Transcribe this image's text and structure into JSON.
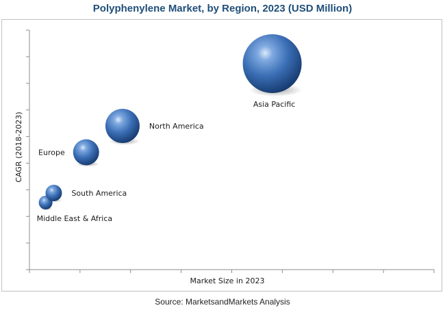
{
  "title": "Polyphenylene Market, by Region, 2023 (USD Million)",
  "source": "Source: MarketsandMarkets Analysis",
  "chart_data": {
    "type": "scatter",
    "subtype": "bubble",
    "title": "Polyphenylene Market, by Region, 2023 (USD Million)",
    "xlabel": "Market Size in 2023",
    "ylabel": "CAGR (2018-2023)",
    "xlim": [
      0,
      10
    ],
    "ylim": [
      0,
      10
    ],
    "x_tick_count": 8,
    "y_tick_count": 9,
    "x_tick_labels_shown": false,
    "y_tick_labels_shown": false,
    "grid": false,
    "legend": "none",
    "bubble_color": "#3b6fb6",
    "points": [
      {
        "label": "Middle East & Africa",
        "x": 0.4,
        "y": 2.8,
        "size": 1.0,
        "label_position": "below-right"
      },
      {
        "label": "South America",
        "x": 0.6,
        "y": 3.2,
        "size": 1.2,
        "label_position": "right"
      },
      {
        "label": "Europe",
        "x": 1.4,
        "y": 4.9,
        "size": 1.9,
        "label_position": "left"
      },
      {
        "label": "North America",
        "x": 2.3,
        "y": 6.0,
        "size": 2.5,
        "label_position": "right"
      },
      {
        "label": "Asia Pacific",
        "x": 6.0,
        "y": 8.6,
        "size": 4.3,
        "label_position": "below"
      }
    ]
  }
}
